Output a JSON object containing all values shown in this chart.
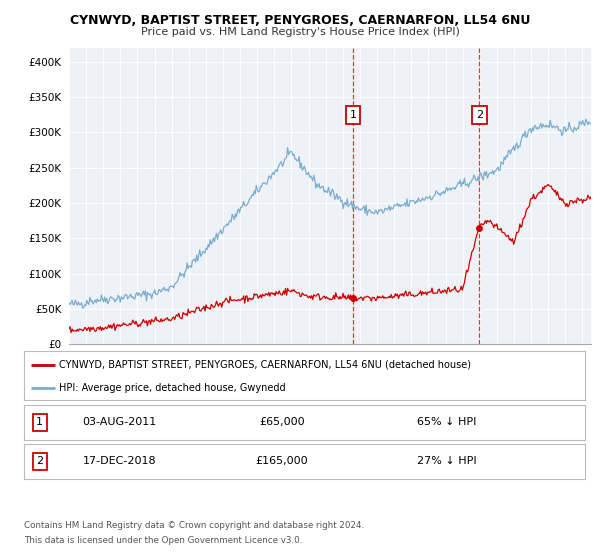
{
  "title": "CYNWYD, BAPTIST STREET, PENYGROES, CAERNARFON, LL54 6NU",
  "subtitle": "Price paid vs. HM Land Registry's House Price Index (HPI)",
  "legend_label_red": "CYNWYD, BAPTIST STREET, PENYGROES, CAERNARFON, LL54 6NU (detached house)",
  "legend_label_blue": "HPI: Average price, detached house, Gwynedd",
  "annotation1_num": "1",
  "annotation1_date": "03-AUG-2011",
  "annotation1_price": "£65,000",
  "annotation1_hpi": "65% ↓ HPI",
  "annotation2_num": "2",
  "annotation2_date": "17-DEC-2018",
  "annotation2_price": "£165,000",
  "annotation2_hpi": "27% ↓ HPI",
  "footer_line1": "Contains HM Land Registry data © Crown copyright and database right 2024.",
  "footer_line2": "This data is licensed under the Open Government Licence v3.0.",
  "xmin": 1995.0,
  "xmax": 2025.5,
  "ymin": 0,
  "ymax": 420000,
  "vline1_x": 2011.6,
  "vline2_x": 2018.97,
  "marker1_x": 2011.6,
  "marker1_y_red": 65000,
  "marker2_x": 2018.97,
  "marker2_y_red": 165000,
  "red_color": "#cc0000",
  "blue_color": "#7aadcf",
  "background_color": "#eef2f7",
  "grid_color": "#ffffff",
  "yticks": [
    0,
    50000,
    100000,
    150000,
    200000,
    250000,
    300000,
    350000,
    400000
  ],
  "ytick_labels": [
    "£0",
    "£50K",
    "£100K",
    "£150K",
    "£200K",
    "£250K",
    "£300K",
    "£350K",
    "£400K"
  ]
}
